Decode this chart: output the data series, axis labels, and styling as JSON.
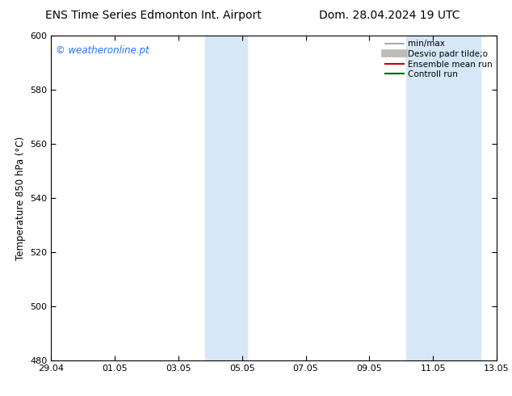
{
  "title_left": "ENS Time Series Edmonton Int. Airport",
  "title_right": "Dom. 28.04.2024 19 UTC",
  "ylabel": "Temperature 850 hPa (°C)",
  "ylim": [
    480,
    600
  ],
  "yticks": [
    480,
    500,
    520,
    540,
    560,
    580,
    600
  ],
  "xtick_labels": [
    "29.04",
    "01.05",
    "03.05",
    "05.05",
    "07.05",
    "09.05",
    "11.05",
    "13.05"
  ],
  "xtick_positions": [
    0,
    2,
    4,
    6,
    8,
    10,
    12,
    14
  ],
  "total_days": 14,
  "shaded_bands": [
    {
      "x_start": 4.83,
      "x_end": 6.17
    },
    {
      "x_start": 11.17,
      "x_end": 13.5
    }
  ],
  "shade_color": "#d6e8f7",
  "background_color": "#ffffff",
  "border_color": "#000000",
  "watermark_text": "© weatheronline.pt",
  "watermark_color": "#1a75ff",
  "legend_entries": [
    {
      "label": "min/max",
      "color": "#999999",
      "lw": 1.2
    },
    {
      "label": "Desvio padr tilde;o",
      "color": "#bbbbbb",
      "lw": 7
    },
    {
      "label": "Ensemble mean run",
      "color": "#cc0000",
      "lw": 1.5
    },
    {
      "label": "Controll run",
      "color": "#006600",
      "lw": 1.5
    }
  ],
  "tick_label_fontsize": 8,
  "title_fontsize": 10,
  "ylabel_fontsize": 8.5,
  "watermark_fontsize": 8.5,
  "legend_fontsize": 7.5
}
